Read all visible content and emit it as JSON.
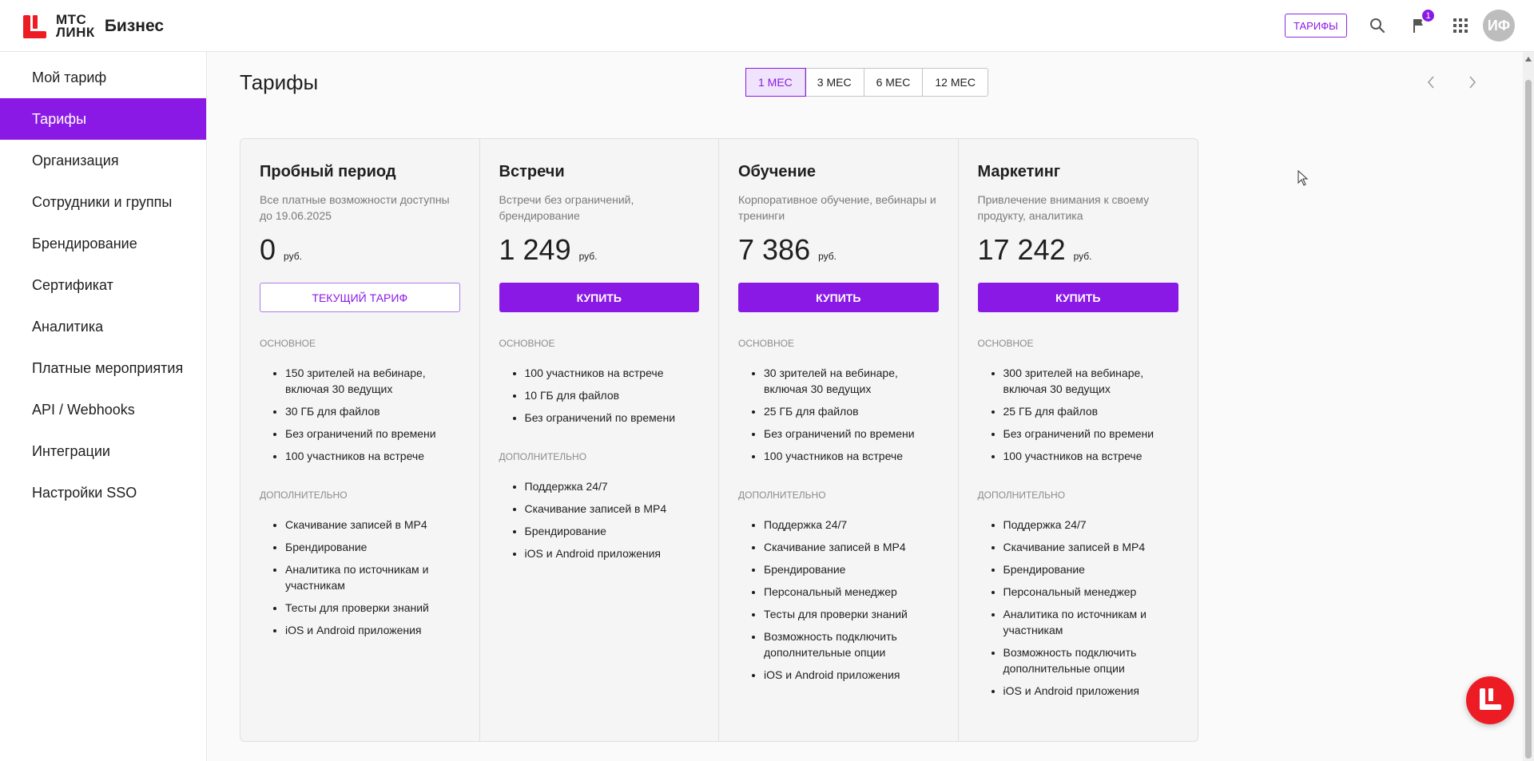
{
  "header": {
    "logo_line1": "МТС",
    "logo_line2": "ЛИНК",
    "product": "Бизнес",
    "tariffs_button": "ТАРИФЫ",
    "notification_count": "1",
    "avatar_initials": "ИФ",
    "accent_color": "#8a19e6",
    "brand_color": "#ed1c24"
  },
  "sidebar": {
    "items": [
      {
        "label": "Мой тариф"
      },
      {
        "label": "Тарифы"
      },
      {
        "label": "Организация"
      },
      {
        "label": "Сотрудники и группы"
      },
      {
        "label": "Брендирование"
      },
      {
        "label": "Сертификат"
      },
      {
        "label": "Аналитика"
      },
      {
        "label": "Платные мероприятия"
      },
      {
        "label": "API / Webhooks"
      },
      {
        "label": "Интеграции"
      },
      {
        "label": "Настройки SSO"
      }
    ],
    "active_index": 1
  },
  "main": {
    "title": "Тарифы",
    "periods": [
      "1 МЕС",
      "3 МЕС",
      "6 МЕС",
      "12 МЕС"
    ],
    "active_period": "1 МЕС",
    "prev_icon": "chevron-left-icon",
    "next_icon": "chevron-right-icon"
  },
  "plans": [
    {
      "name": "Пробный период",
      "desc": "Все платные возможности доступны до 19.06.2025",
      "price": "0",
      "unit": "руб.",
      "button": "ТЕКУЩИЙ ТАРИФ",
      "basic_label": "ОСНОВНОЕ",
      "basic": [
        "150 зрителей на вебинаре, включая 30 ведущих",
        "30 ГБ для файлов",
        "Без ограничений по времени",
        "100 участников на встрече"
      ],
      "extra_label": "ДОПОЛНИТЕЛЬНО",
      "extra": [
        "Скачивание записей в MP4",
        "Брендирование",
        "Аналитика по источникам и участникам",
        "Тесты для проверки знаний",
        "iOS и Android приложения"
      ]
    },
    {
      "name": "Встречи",
      "desc": "Встречи без ограничений, брендирование",
      "price": "1 249",
      "unit": "руб.",
      "button": "КУПИТЬ",
      "basic_label": "ОСНОВНОЕ",
      "basic": [
        "100 участников на встрече",
        "10 ГБ для файлов",
        "Без ограничений по времени"
      ],
      "extra_label": "ДОПОЛНИТЕЛЬНО",
      "extra": [
        "Поддержка 24/7",
        "Скачивание записей в MP4",
        "Брендирование",
        "iOS и Android приложения"
      ]
    },
    {
      "name": "Обучение",
      "desc": "Корпоративное обучение, вебинары и тренинги",
      "price": "7 386",
      "unit": "руб.",
      "button": "КУПИТЬ",
      "basic_label": "ОСНОВНОЕ",
      "basic": [
        "30 зрителей на вебинаре, включая 30 ведущих",
        "25 ГБ для файлов",
        "Без ограничений по времени",
        "100 участников на встрече"
      ],
      "extra_label": "ДОПОЛНИТЕЛЬНО",
      "extra": [
        "Поддержка 24/7",
        "Скачивание записей в MP4",
        "Брендирование",
        "Персональный менеджер",
        "Тесты для проверки знаний",
        "Возможность подключить дополнительные опции",
        "iOS и Android приложения"
      ]
    },
    {
      "name": "Маркетинг",
      "desc": "Привлечение внимания к своему продукту, аналитика",
      "price": "17 242",
      "unit": "руб.",
      "button": "КУПИТЬ",
      "basic_label": "ОСНОВНОЕ",
      "basic": [
        "300 зрителей на вебинаре, включая 30 ведущих",
        "25 ГБ для файлов",
        "Без ограничений по времени",
        "100 участников на встрече"
      ],
      "extra_label": "ДОПОЛНИТЕЛЬНО",
      "extra": [
        "Поддержка 24/7",
        "Скачивание записей в MP4",
        "Брендирование",
        "Персональный менеджер",
        "Аналитика по источникам и участникам",
        "Возможность подключить дополнительные опции",
        "iOS и Android приложения"
      ]
    }
  ]
}
